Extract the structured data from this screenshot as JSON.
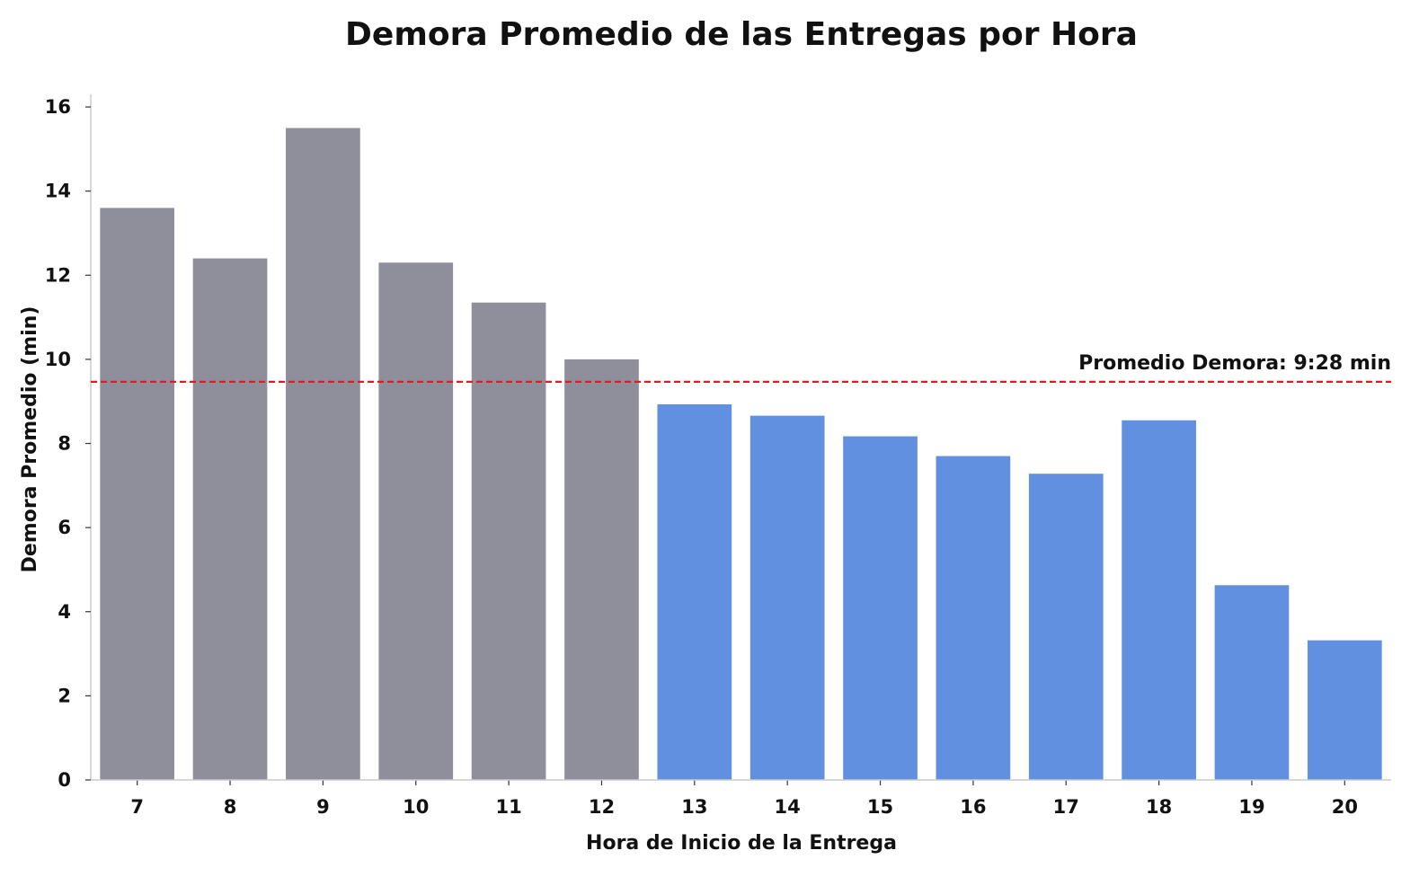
{
  "chart_data": {
    "type": "bar",
    "title": "Demora Promedio de las Entregas por Hora",
    "xlabel": "Hora de Inicio de la Entrega",
    "ylabel": "Demora Promedio (min)",
    "categories": [
      "7",
      "8",
      "9",
      "10",
      "11",
      "12",
      "13",
      "14",
      "15",
      "16",
      "17",
      "18",
      "19",
      "20"
    ],
    "values": [
      13.6,
      12.4,
      15.5,
      12.3,
      11.35,
      10.0,
      8.93,
      8.66,
      8.17,
      7.7,
      7.28,
      8.55,
      4.63,
      3.32
    ],
    "ylim": [
      0,
      16.3
    ],
    "yticks": [
      0,
      2,
      4,
      6,
      8,
      10,
      12,
      14,
      16
    ],
    "grid": false,
    "reference_line": {
      "value": 9.4667,
      "label": "Promedio Demora: 9:28 min",
      "color": "#e8191a"
    },
    "colors": {
      "above_average": "#8f8f9b",
      "below_average": "#6190e0",
      "axis": "#cccccc"
    }
  }
}
